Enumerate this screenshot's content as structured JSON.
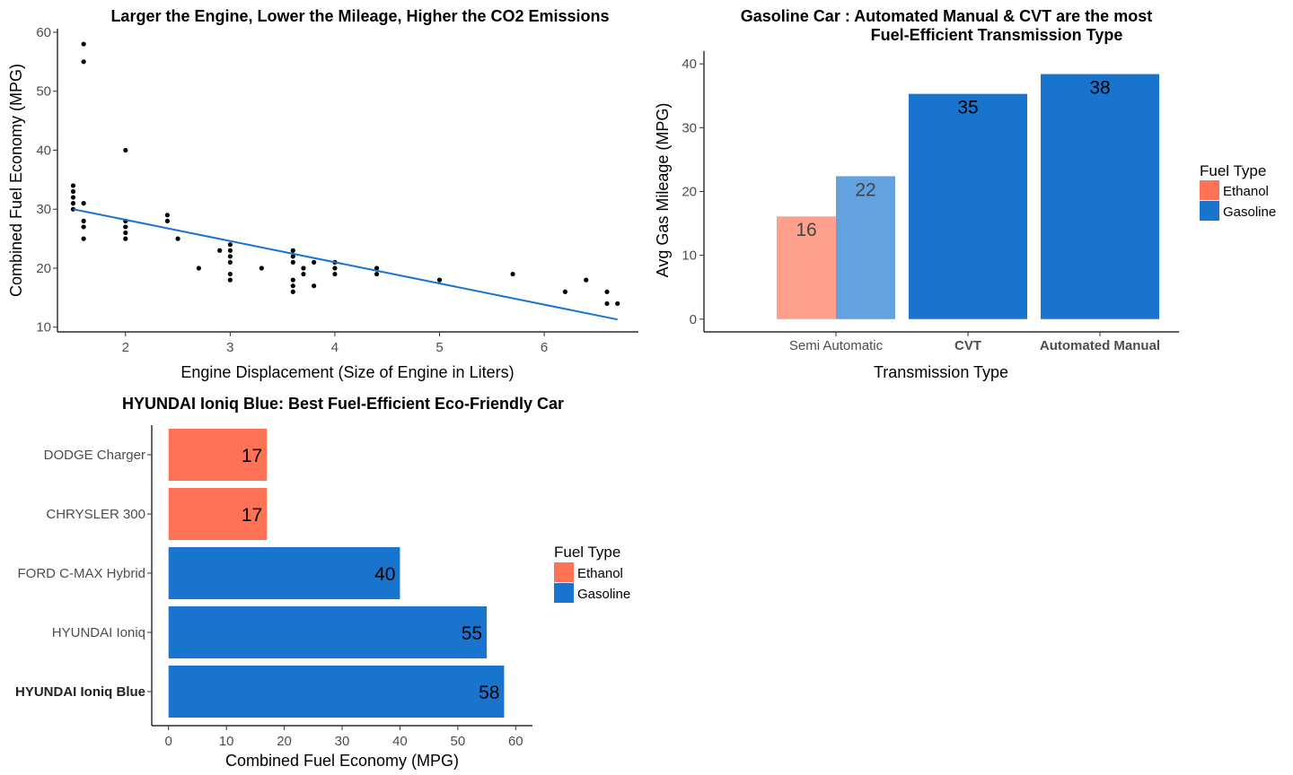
{
  "colors": {
    "ethanol": "#FF7256",
    "gasoline": "#1874CD",
    "ethanol_light": "#FFA08D",
    "gasoline_light": "#64A2DF",
    "points": "#000000",
    "trend": "#1874CD"
  },
  "chart_data": [
    {
      "id": "scatter",
      "type": "scatter",
      "title": "Larger the Engine, Lower the Mileage, Higher the CO2 Emissions",
      "xlabel": "Engine Displacement (Size of Engine in Liters)",
      "ylabel": "Combined Fuel Economy (MPG)",
      "xlim": [
        1.35,
        6.9
      ],
      "ylim": [
        9.2,
        60.6
      ],
      "xticks": [
        2,
        3,
        4,
        5,
        6
      ],
      "yticks": [
        10,
        20,
        30,
        40,
        50,
        60
      ],
      "trend_line": {
        "x": [
          1.5,
          6.7
        ],
        "y": [
          30,
          11.3
        ]
      },
      "points": [
        [
          1.5,
          34
        ],
        [
          1.5,
          33
        ],
        [
          1.5,
          32
        ],
        [
          1.5,
          31
        ],
        [
          1.5,
          30
        ],
        [
          1.6,
          58
        ],
        [
          1.6,
          55
        ],
        [
          1.6,
          31
        ],
        [
          1.6,
          28
        ],
        [
          1.6,
          27
        ],
        [
          1.6,
          25
        ],
        [
          2.0,
          40
        ],
        [
          2.0,
          28
        ],
        [
          2.0,
          27
        ],
        [
          2.0,
          26
        ],
        [
          2.0,
          25
        ],
        [
          2.4,
          29
        ],
        [
          2.4,
          28
        ],
        [
          2.5,
          25
        ],
        [
          2.7,
          20
        ],
        [
          2.9,
          23
        ],
        [
          3.0,
          24
        ],
        [
          3.0,
          23
        ],
        [
          3.0,
          22
        ],
        [
          3.0,
          21
        ],
        [
          3.0,
          19
        ],
        [
          3.0,
          18
        ],
        [
          3.3,
          20
        ],
        [
          3.6,
          23
        ],
        [
          3.6,
          22
        ],
        [
          3.6,
          21
        ],
        [
          3.6,
          18
        ],
        [
          3.6,
          17
        ],
        [
          3.6,
          16
        ],
        [
          3.7,
          20
        ],
        [
          3.7,
          19
        ],
        [
          3.8,
          21
        ],
        [
          3.8,
          17
        ],
        [
          4.0,
          21
        ],
        [
          4.0,
          20
        ],
        [
          4.0,
          19
        ],
        [
          4.4,
          20
        ],
        [
          4.4,
          19
        ],
        [
          5.0,
          18
        ],
        [
          5.7,
          19
        ],
        [
          6.2,
          16
        ],
        [
          6.4,
          18
        ],
        [
          6.6,
          16
        ],
        [
          6.6,
          14
        ],
        [
          6.7,
          14
        ]
      ]
    },
    {
      "id": "transmission",
      "type": "bar",
      "title_lines": [
        "Gasoline Car : Automated Manual & CVT are the most",
        "Fuel-Efficient Transmission Type"
      ],
      "xlabel": "Transmission Type",
      "ylabel": "Avg Gas Mileage (MPG)",
      "ylim": [
        -2,
        42
      ],
      "yticks": [
        0,
        10,
        20,
        30,
        40
      ],
      "categories": [
        "Semi Automatic",
        "CVT",
        "Automated Manual"
      ],
      "bold_categories": [
        "CVT",
        "Automated Manual"
      ],
      "legend": {
        "title": "Fuel Type",
        "entries": [
          "Ethanol",
          "Gasoline"
        ]
      },
      "bars": [
        {
          "category": "Semi Automatic",
          "fuel": "Ethanol",
          "value": 16.1,
          "label": "16",
          "highlight": false
        },
        {
          "category": "Semi Automatic",
          "fuel": "Gasoline",
          "value": 22.4,
          "label": "22",
          "highlight": false
        },
        {
          "category": "CVT",
          "fuel": "Gasoline",
          "value": 35.3,
          "label": "35",
          "highlight": true
        },
        {
          "category": "Automated Manual",
          "fuel": "Gasoline",
          "value": 38.4,
          "label": "38",
          "highlight": true
        }
      ]
    },
    {
      "id": "cars",
      "type": "bar",
      "orientation": "horizontal",
      "title": "HYUNDAI Ioniq Blue: Best Fuel-Efficient Eco-Friendly Car",
      "xlabel": "Combined Fuel Economy (MPG)",
      "ylabel": "",
      "xlim": [
        -2.9,
        62.9
      ],
      "xticks": [
        0,
        10,
        20,
        30,
        40,
        50,
        60
      ],
      "legend": {
        "title": "Fuel Type",
        "entries": [
          "Ethanol",
          "Gasoline"
        ]
      },
      "bars": [
        {
          "name": "DODGE Charger",
          "fuel": "Ethanol",
          "value": 17,
          "label": "17",
          "bold": false
        },
        {
          "name": "CHRYSLER 300",
          "fuel": "Ethanol",
          "value": 17,
          "label": "17",
          "bold": false
        },
        {
          "name": "FORD C-MAX Hybrid",
          "fuel": "Gasoline",
          "value": 40,
          "label": "40",
          "bold": false
        },
        {
          "name": "HYUNDAI Ioniq",
          "fuel": "Gasoline",
          "value": 55,
          "label": "55",
          "bold": false
        },
        {
          "name": "HYUNDAI Ioniq Blue",
          "fuel": "Gasoline",
          "value": 58,
          "label": "58",
          "bold": true
        }
      ]
    }
  ]
}
